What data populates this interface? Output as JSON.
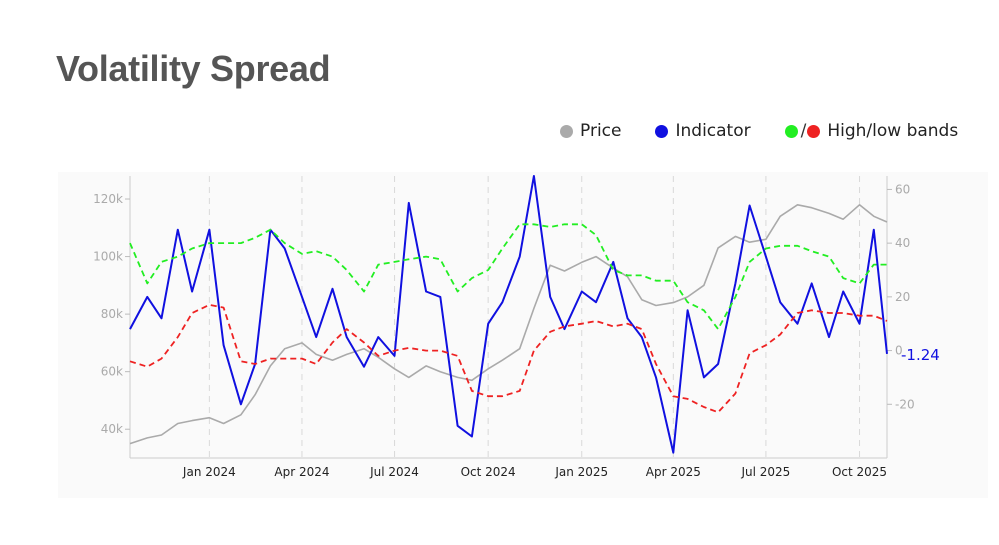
{
  "title": "Volatility Spread",
  "legend": {
    "price": {
      "label": "Price",
      "color": "#aaaaaa"
    },
    "indicator": {
      "label": "Indicator",
      "color": "#1010e0"
    },
    "bands": {
      "label": "High/low bands",
      "high_color": "#22ee22",
      "low_color": "#ee2222"
    }
  },
  "last_value_label": "-1.24",
  "chart_data": {
    "type": "line",
    "title": "Volatility Spread",
    "x_range": [
      "2023-10-15",
      "2025-10-28"
    ],
    "x_ticks": [
      "Jan 2024",
      "Apr 2024",
      "Jul 2024",
      "Oct 2024",
      "Jan 2025",
      "Apr 2025",
      "Jul 2025",
      "Oct 2025"
    ],
    "x_tick_dates": [
      "2024-01-01",
      "2024-04-01",
      "2024-07-01",
      "2024-10-01",
      "2025-01-01",
      "2025-04-01",
      "2025-07-01",
      "2025-10-01"
    ],
    "y_left": {
      "ticks": [
        "40k",
        "60k",
        "80k",
        "100k",
        "120k"
      ],
      "tick_values": [
        40000,
        60000,
        80000,
        100000,
        120000
      ],
      "range": [
        30000,
        128000
      ]
    },
    "y_right": {
      "ticks": [
        "-20",
        "0",
        "20",
        "40",
        "60"
      ],
      "tick_values": [
        -20,
        0,
        20,
        40,
        60
      ],
      "range": [
        -40,
        65
      ]
    },
    "grid": "vertical dashed",
    "series": [
      {
        "name": "Price",
        "axis": "left",
        "color": "#aaaaaa",
        "x": [
          "2023-10-15",
          "2023-11-01",
          "2023-11-15",
          "2023-12-01",
          "2023-12-15",
          "2024-01-01",
          "2024-01-15",
          "2024-02-01",
          "2024-02-15",
          "2024-03-01",
          "2024-03-15",
          "2024-04-01",
          "2024-04-15",
          "2024-05-01",
          "2024-05-15",
          "2024-06-01",
          "2024-06-15",
          "2024-07-01",
          "2024-07-15",
          "2024-08-01",
          "2024-08-15",
          "2024-09-01",
          "2024-09-15",
          "2024-10-01",
          "2024-10-15",
          "2024-11-01",
          "2024-11-15",
          "2024-12-01",
          "2024-12-15",
          "2025-01-01",
          "2025-01-15",
          "2025-02-01",
          "2025-02-15",
          "2025-03-01",
          "2025-03-15",
          "2025-04-01",
          "2025-04-15",
          "2025-05-01",
          "2025-05-15",
          "2025-06-01",
          "2025-06-15",
          "2025-07-01",
          "2025-07-15",
          "2025-08-01",
          "2025-08-15",
          "2025-09-01",
          "2025-09-15",
          "2025-10-01",
          "2025-10-15",
          "2025-10-28"
        ],
        "values": [
          35000,
          37000,
          38000,
          42000,
          43000,
          44000,
          42000,
          45000,
          52000,
          62000,
          68000,
          70000,
          66000,
          64000,
          66000,
          68000,
          65000,
          61000,
          58000,
          62000,
          60000,
          58000,
          57000,
          61000,
          64000,
          68000,
          82000,
          97000,
          95000,
          98000,
          100000,
          96000,
          93000,
          85000,
          83000,
          84000,
          86000,
          90000,
          103000,
          107000,
          105000,
          106000,
          114000,
          118000,
          117000,
          115000,
          113000,
          118000,
          114000,
          112000
        ]
      },
      {
        "name": "Indicator",
        "axis": "right",
        "color": "#1010e0",
        "x": [
          "2023-10-15",
          "2023-11-01",
          "2023-11-15",
          "2023-12-01",
          "2023-12-15",
          "2024-01-01",
          "2024-01-15",
          "2024-02-01",
          "2024-02-15",
          "2024-03-01",
          "2024-03-15",
          "2024-04-01",
          "2024-04-15",
          "2024-05-01",
          "2024-05-15",
          "2024-06-01",
          "2024-06-15",
          "2024-07-01",
          "2024-07-15",
          "2024-08-01",
          "2024-08-15",
          "2024-09-01",
          "2024-09-15",
          "2024-10-01",
          "2024-10-15",
          "2024-11-01",
          "2024-11-15",
          "2024-12-01",
          "2024-12-15",
          "2025-01-01",
          "2025-01-15",
          "2025-02-01",
          "2025-02-15",
          "2025-03-01",
          "2025-03-15",
          "2025-04-01",
          "2025-04-15",
          "2025-05-01",
          "2025-05-15",
          "2025-06-01",
          "2025-06-15",
          "2025-07-01",
          "2025-07-15",
          "2025-08-01",
          "2025-08-15",
          "2025-09-01",
          "2025-09-15",
          "2025-10-01",
          "2025-10-15",
          "2025-10-28"
        ],
        "values": [
          8,
          20,
          12,
          45,
          22,
          45,
          2,
          -20,
          -5,
          45,
          38,
          20,
          5,
          23,
          5,
          -6,
          5,
          -2,
          55,
          22,
          20,
          -28,
          -32,
          10,
          18,
          35,
          65,
          20,
          8,
          22,
          18,
          33,
          12,
          5,
          -10,
          -38,
          15,
          -10,
          -5,
          25,
          54,
          35,
          18,
          10,
          25,
          5,
          22,
          10,
          45,
          -1.24
        ]
      },
      {
        "name": "High band",
        "axis": "right",
        "color": "#22ee22",
        "x": [
          "2023-10-15",
          "2023-11-01",
          "2023-11-15",
          "2023-12-01",
          "2023-12-15",
          "2024-01-01",
          "2024-01-15",
          "2024-02-01",
          "2024-02-15",
          "2024-03-01",
          "2024-03-15",
          "2024-04-01",
          "2024-04-15",
          "2024-05-01",
          "2024-05-15",
          "2024-06-01",
          "2024-06-15",
          "2024-07-01",
          "2024-07-15",
          "2024-08-01",
          "2024-08-15",
          "2024-09-01",
          "2024-09-15",
          "2024-10-01",
          "2024-10-15",
          "2024-11-01",
          "2024-11-15",
          "2024-12-01",
          "2024-12-15",
          "2025-01-01",
          "2025-01-15",
          "2025-02-01",
          "2025-02-15",
          "2025-03-01",
          "2025-03-15",
          "2025-04-01",
          "2025-04-15",
          "2025-05-01",
          "2025-05-15",
          "2025-06-01",
          "2025-06-15",
          "2025-07-01",
          "2025-07-15",
          "2025-08-01",
          "2025-08-15",
          "2025-09-01",
          "2025-09-15",
          "2025-10-01",
          "2025-10-15",
          "2025-10-28"
        ],
        "values": [
          40,
          25,
          33,
          35,
          38,
          40,
          40,
          40,
          42,
          45,
          40,
          36,
          37,
          35,
          30,
          22,
          32,
          33,
          34,
          35,
          34,
          22,
          27,
          30,
          38,
          47,
          47,
          46,
          47,
          47,
          43,
          30,
          28,
          28,
          26,
          26,
          18,
          15,
          8,
          20,
          33,
          38,
          39,
          39,
          37,
          35,
          27,
          25,
          32,
          32
        ]
      },
      {
        "name": "Low band",
        "axis": "right",
        "color": "#ee2222",
        "x": [
          "2023-10-15",
          "2023-11-01",
          "2023-11-15",
          "2023-12-01",
          "2023-12-15",
          "2024-01-01",
          "2024-01-15",
          "2024-02-01",
          "2024-02-15",
          "2024-03-01",
          "2024-03-15",
          "2024-04-01",
          "2024-04-15",
          "2024-05-01",
          "2024-05-15",
          "2024-06-01",
          "2024-06-15",
          "2024-07-01",
          "2024-07-15",
          "2024-08-01",
          "2024-08-15",
          "2024-09-01",
          "2024-09-15",
          "2024-10-01",
          "2024-10-15",
          "2024-11-01",
          "2024-11-15",
          "2024-12-01",
          "2024-12-15",
          "2025-01-01",
          "2025-01-15",
          "2025-02-01",
          "2025-02-15",
          "2025-03-01",
          "2025-03-15",
          "2025-04-01",
          "2025-04-15",
          "2025-05-01",
          "2025-05-15",
          "2025-06-01",
          "2025-06-15",
          "2025-07-01",
          "2025-07-15",
          "2025-08-01",
          "2025-08-15",
          "2025-09-01",
          "2025-09-15",
          "2025-10-01",
          "2025-10-15",
          "2025-10-28"
        ],
        "values": [
          -4,
          -6,
          -3,
          5,
          14,
          17,
          16,
          -4,
          -5,
          -3,
          -3,
          -3,
          -5,
          3,
          8,
          3,
          -2,
          0,
          1,
          0,
          0,
          -2,
          -15,
          -17,
          -17,
          -15,
          0,
          7,
          9,
          10,
          11,
          9,
          10,
          8,
          -5,
          -17,
          -18,
          -21,
          -23,
          -16,
          -1,
          2,
          6,
          14,
          15,
          14,
          14,
          13,
          13,
          11
        ]
      }
    ]
  }
}
